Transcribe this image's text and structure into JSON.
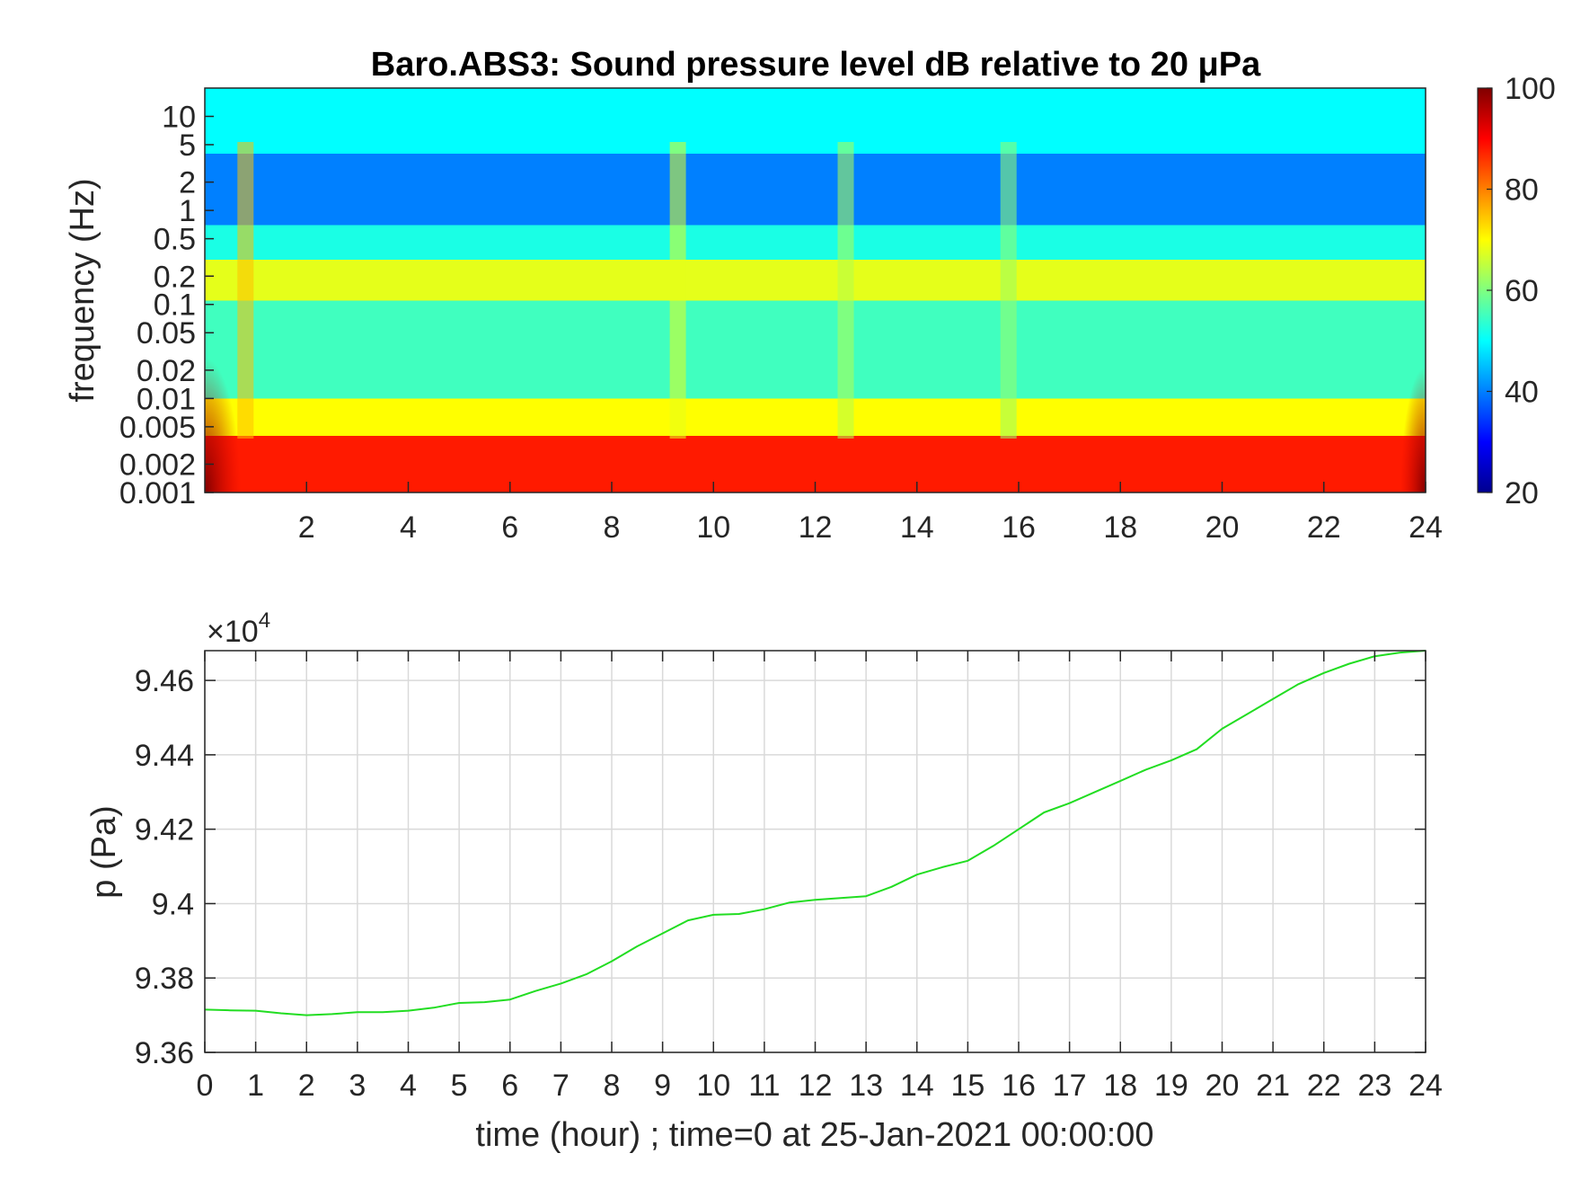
{
  "chart_data": [
    {
      "type": "heatmap",
      "title": "Baro.ABS3: Sound pressure level dB relative to 20 μPa",
      "xlabel": "",
      "ylabel": "frequency (Hz)",
      "xlim": [
        0,
        24
      ],
      "x_ticks": [
        2,
        4,
        6,
        8,
        10,
        12,
        14,
        16,
        18,
        20,
        22,
        24
      ],
      "yscale": "log",
      "ylim": [
        0.001,
        20
      ],
      "y_ticks": [
        0.001,
        0.002,
        0.005,
        0.01,
        0.02,
        0.05,
        0.1,
        0.2,
        0.5,
        1,
        2,
        5,
        10
      ],
      "y_tick_labels": [
        "0.001",
        "0.002",
        "0.005",
        "0.01",
        "0.02",
        "0.05",
        "0.1",
        "0.2",
        "0.5",
        "1",
        "2",
        "5",
        "10"
      ],
      "colorbar": {
        "colormap": "jet",
        "clim": [
          20,
          100
        ],
        "ticks": [
          20,
          40,
          60,
          80,
          100
        ]
      },
      "bands": [
        {
          "f_low": 0.001,
          "f_high": 0.004,
          "level_db": 88
        },
        {
          "f_low": 0.004,
          "f_high": 0.01,
          "level_db": 70
        },
        {
          "f_low": 0.01,
          "f_high": 0.11,
          "level_db": 55
        },
        {
          "f_low": 0.11,
          "f_high": 0.3,
          "level_db": 68
        },
        {
          "f_low": 0.3,
          "f_high": 0.7,
          "level_db": 52
        },
        {
          "f_low": 0.7,
          "f_high": 4,
          "level_db": 40
        },
        {
          "f_low": 4,
          "f_high": 20,
          "level_db": 50
        }
      ],
      "events": [
        {
          "time_hour": 0.8,
          "level_db": 75
        },
        {
          "time_hour": 9.3,
          "level_db": 68
        },
        {
          "time_hour": 12.6,
          "level_db": 64
        },
        {
          "time_hour": 15.8,
          "level_db": 62
        }
      ],
      "grid": false,
      "legend": "none"
    },
    {
      "type": "line",
      "xlabel": "time (hour) ; time=0 at 25-Jan-2021 00:00:00",
      "ylabel": "p (Pa)",
      "exponent_label": "×10",
      "exponent_power": "4",
      "xlim": [
        0,
        24
      ],
      "ylim": [
        9.36,
        9.468
      ],
      "x_ticks": [
        0,
        1,
        2,
        3,
        4,
        5,
        6,
        7,
        8,
        9,
        10,
        11,
        12,
        13,
        14,
        15,
        16,
        17,
        18,
        19,
        20,
        21,
        22,
        23,
        24
      ],
      "y_ticks": [
        9.36,
        9.38,
        9.4,
        9.42,
        9.44,
        9.46
      ],
      "y_tick_labels": [
        "9.36",
        "9.38",
        "9.4",
        "9.42",
        "9.44",
        "9.46"
      ],
      "grid": true,
      "legend": "none",
      "series": [
        {
          "color": "#22dd22",
          "x": [
            0,
            0.5,
            1,
            1.5,
            2,
            2.5,
            3,
            3.5,
            4,
            4.5,
            5,
            5.5,
            6,
            6.5,
            7,
            7.5,
            8,
            8.5,
            9,
            9.5,
            10,
            10.5,
            11,
            11.5,
            12,
            12.5,
            13,
            13.5,
            14,
            14.5,
            15,
            15.5,
            16,
            16.5,
            17,
            17.5,
            18,
            18.5,
            19,
            19.5,
            20,
            20.5,
            21,
            21.5,
            22,
            22.5,
            23,
            23.5,
            24
          ],
          "y": [
            9.3715,
            9.3713,
            9.3712,
            9.3705,
            9.37,
            9.3703,
            9.3708,
            9.3708,
            9.3712,
            9.372,
            9.3733,
            9.3735,
            9.3742,
            9.3765,
            9.3785,
            9.381,
            9.3845,
            9.3885,
            9.392,
            9.3955,
            9.397,
            9.3972,
            9.3985,
            9.4003,
            9.401,
            9.4015,
            9.402,
            9.4045,
            9.4078,
            9.4098,
            9.4115,
            9.4155,
            9.42,
            9.4245,
            9.427,
            9.43,
            9.433,
            9.436,
            9.4385,
            9.4415,
            9.447,
            9.451,
            9.455,
            9.459,
            9.462,
            9.4645,
            9.4665,
            9.4675,
            9.468
          ]
        }
      ]
    }
  ]
}
